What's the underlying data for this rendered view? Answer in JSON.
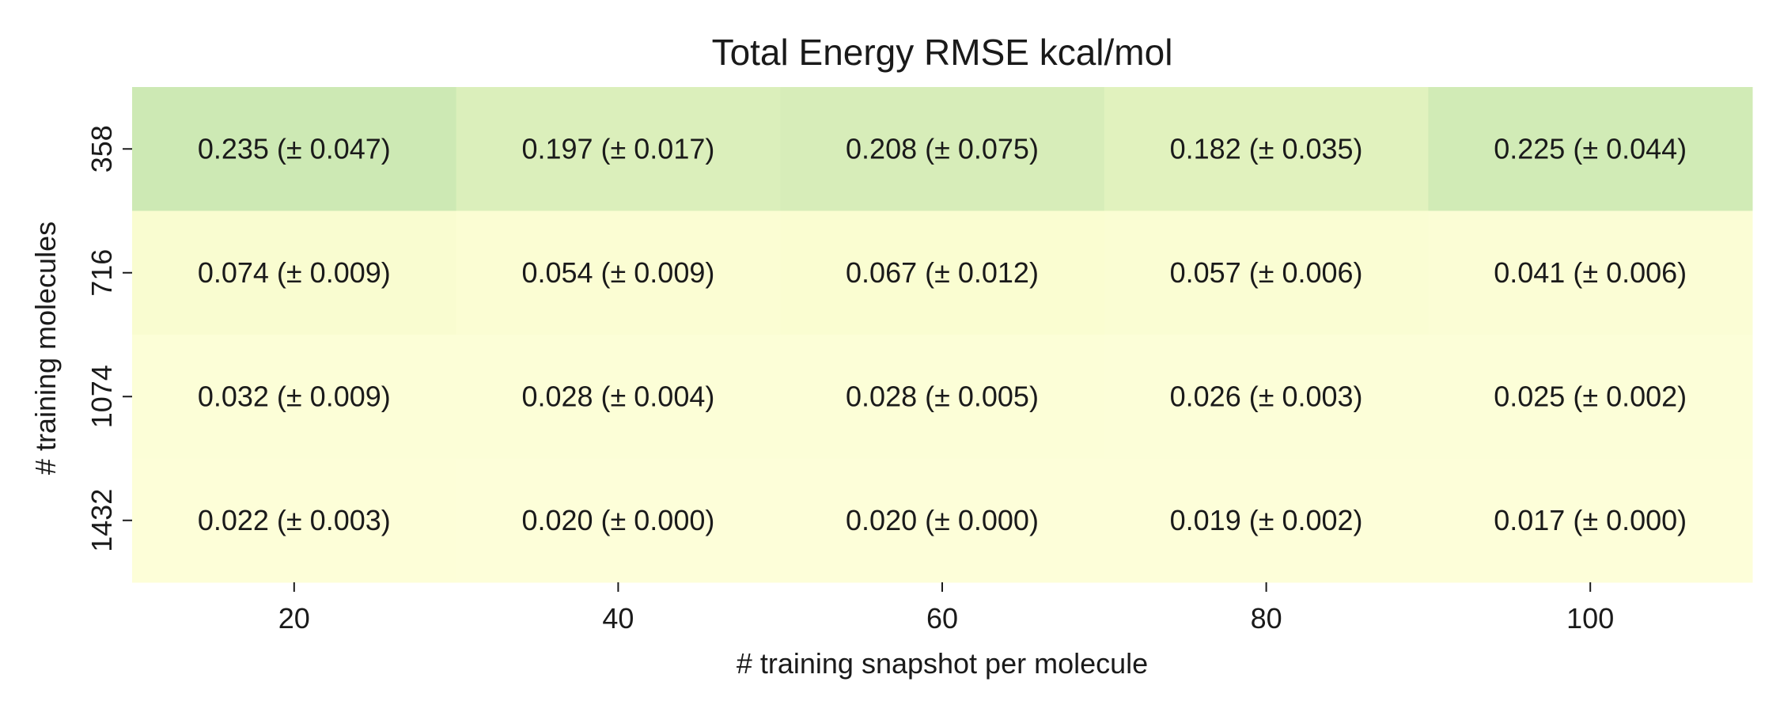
{
  "chart_data": {
    "type": "heatmap",
    "title": "Total Energy RMSE kcal/mol",
    "xlabel": "# training snapshot per molecule",
    "ylabel": "# training molecules",
    "x_categories": [
      "20",
      "40",
      "60",
      "80",
      "100"
    ],
    "y_categories": [
      "358",
      "716",
      "1074",
      "1432"
    ],
    "values": [
      [
        0.235,
        0.197,
        0.208,
        0.182,
        0.225
      ],
      [
        0.074,
        0.054,
        0.067,
        0.057,
        0.041
      ],
      [
        0.032,
        0.028,
        0.028,
        0.026,
        0.025
      ],
      [
        0.022,
        0.02,
        0.02,
        0.019,
        0.017
      ]
    ],
    "errors": [
      [
        0.047,
        0.017,
        0.075,
        0.035,
        0.044
      ],
      [
        0.009,
        0.009,
        0.012,
        0.006,
        0.006
      ],
      [
        0.009,
        0.004,
        0.005,
        0.003,
        0.002
      ],
      [
        0.003,
        0.0,
        0.0,
        0.002,
        0.0
      ]
    ],
    "cell_labels": [
      [
        "0.235 (± 0.047)",
        "0.197 (± 0.017)",
        "0.208 (± 0.075)",
        "0.182 (± 0.035)",
        "0.225 (± 0.044)"
      ],
      [
        "0.074 (± 0.009)",
        "0.054 (± 0.009)",
        "0.067 (± 0.012)",
        "0.057 (± 0.006)",
        "0.041 (± 0.006)"
      ],
      [
        "0.032 (± 0.009)",
        "0.028 (± 0.004)",
        "0.028 (± 0.005)",
        "0.026 (± 0.003)",
        "0.025 (± 0.002)"
      ],
      [
        "0.022 (± 0.003)",
        "0.020 (± 0.000)",
        "0.020 (± 0.000)",
        "0.019 (± 0.002)",
        "0.017 (± 0.000)"
      ]
    ],
    "colormap": {
      "low": "#fdfed9",
      "mid": "#f6fbc8",
      "high": "#cde9b4"
    },
    "vrange": [
      0.017,
      0.235
    ],
    "colorbar": false,
    "grid": false
  }
}
